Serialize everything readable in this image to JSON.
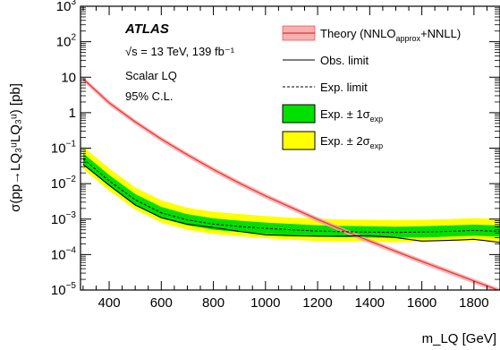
{
  "chart_data": {
    "type": "line",
    "experiment": "ATLAS",
    "info_lines": [
      "√s = 13 TeV, 139 fb⁻¹",
      "Scalar LQ",
      "95% C.L."
    ],
    "xlabel": "m_LQ [GeV]",
    "ylabel": "σ(pp→LQ₃ᵘLQ₃ᵘ) [pb]",
    "xlim": [
      290,
      1900
    ],
    "ylim": [
      1e-05,
      1000
    ],
    "yscale": "log",
    "x_ticks": [
      400,
      600,
      800,
      1000,
      1200,
      1400,
      1600,
      1800
    ],
    "x_tick_labels": [
      "400",
      "600",
      "800",
      "1000",
      "1200",
      "1400",
      "1600",
      "1800"
    ],
    "y_ticks": [
      1e-05,
      0.0001,
      0.001,
      0.01,
      0.1,
      1,
      10,
      100,
      1000
    ],
    "y_tick_labels": [
      {
        "base": "10",
        "exp": "−5"
      },
      {
        "base": "10",
        "exp": "−4"
      },
      {
        "base": "10",
        "exp": "−3"
      },
      {
        "base": "10",
        "exp": "−2"
      },
      {
        "base": "10",
        "exp": "−1"
      },
      {
        "base": "1",
        "exp": ""
      },
      {
        "base": "10",
        "exp": ""
      },
      {
        "base": "10",
        "exp": "2"
      },
      {
        "base": "10",
        "exp": "3"
      }
    ],
    "legend": [
      {
        "key": "theory",
        "label": "Theory (NNLO",
        "sub": "approx",
        "label_after": "+NNLL)",
        "color": "#e8302e"
      },
      {
        "key": "obs",
        "label": "Obs. limit",
        "color": "#000000"
      },
      {
        "key": "exp",
        "label": "Exp. limit",
        "color": "#000000"
      },
      {
        "key": "band1",
        "label": "Exp. ± 1σ",
        "sub": "exp",
        "color": "#00e000"
      },
      {
        "key": "band2",
        "label": "Exp. ± 2σ",
        "sub": "exp",
        "color": "#ffff00"
      }
    ],
    "x": [
      300,
      400,
      500,
      600,
      700,
      800,
      900,
      1000,
      1100,
      1200,
      1300,
      1400,
      1500,
      1600,
      1700,
      1800,
      1900
    ],
    "series": [
      {
        "name": "Theory (NNLO approx + NNLL)",
        "values": [
          9,
          1.9,
          0.55,
          0.18,
          0.065,
          0.025,
          0.0103,
          0.0045,
          0.0021,
          0.00098,
          0.00048,
          0.00024,
          0.000123,
          6.4e-05,
          3.4e-05,
          1.8e-05,
          9.5e-06
        ]
      },
      {
        "name": "Obs. limit",
        "values": [
          0.035,
          0.009,
          0.0025,
          0.0011,
          0.00072,
          0.00058,
          0.00045,
          0.00036,
          0.00034,
          0.00033,
          0.00033,
          0.00034,
          0.0003,
          0.00024,
          0.00025,
          0.00027,
          0.00022
        ]
      },
      {
        "name": "Exp. limit",
        "values": [
          0.05,
          0.012,
          0.0035,
          0.0015,
          0.00095,
          0.00072,
          0.00062,
          0.00055,
          0.0005,
          0.00046,
          0.00044,
          0.00043,
          0.00042,
          0.00043,
          0.00045,
          0.00048,
          0.00045
        ]
      },
      {
        "name": "Exp. ± 1σ",
        "low": [
          0.035,
          0.0085,
          0.0025,
          0.00105,
          0.00067,
          0.0005,
          0.00043,
          0.00038,
          0.00035,
          0.00032,
          0.00031,
          0.0003,
          0.0003,
          0.0003,
          0.00032,
          0.00034,
          0.00032
        ],
        "high": [
          0.072,
          0.0175,
          0.0051,
          0.0022,
          0.00138,
          0.00105,
          0.0009,
          0.0008,
          0.00073,
          0.00067,
          0.00064,
          0.00063,
          0.00061,
          0.00063,
          0.00066,
          0.0007,
          0.00066
        ]
      },
      {
        "name": "Exp. ± 2σ",
        "low": [
          0.026,
          0.0063,
          0.00185,
          0.0008,
          0.0005,
          0.00038,
          0.00033,
          0.00029,
          0.00026,
          0.00024,
          0.00023,
          0.00023,
          0.00022,
          0.00023,
          0.00024,
          0.00025,
          0.00024
        ],
        "high": [
          0.11,
          0.027,
          0.0078,
          0.0034,
          0.0021,
          0.0016,
          0.0014,
          0.00122,
          0.0011,
          0.00102,
          0.00098,
          0.00096,
          0.00094,
          0.00096,
          0.001,
          0.00107,
          0.001
        ]
      }
    ]
  }
}
